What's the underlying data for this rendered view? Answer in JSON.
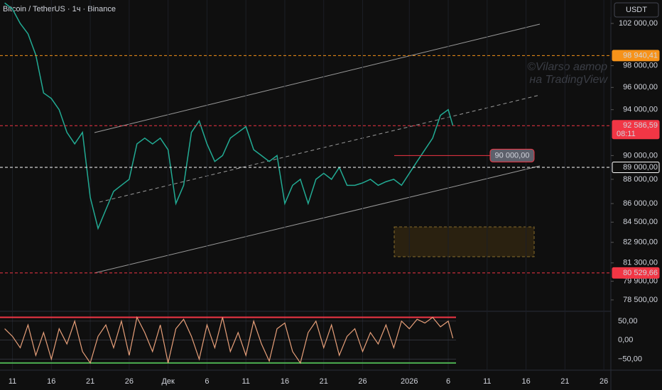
{
  "header": {
    "title": "Bitcoin / TetherUS · 1ч · Binance",
    "currency": "USDT",
    "watermark": [
      "©Vilarso автор",
      "на TradingView"
    ]
  },
  "chart_data": [
    {
      "type": "line",
      "color": "#22ab94",
      "log_scale": true,
      "x": [
        -1,
        0,
        1,
        2,
        3,
        4,
        5,
        6,
        7,
        8,
        9,
        10,
        11,
        12,
        13,
        14,
        15,
        16,
        17,
        18,
        19,
        20,
        21,
        22,
        23,
        24,
        25,
        26,
        27,
        28,
        29,
        30,
        31,
        32,
        33,
        34,
        35,
        36,
        37,
        38,
        39,
        40,
        41,
        42,
        43,
        44,
        45,
        46,
        47,
        48,
        49,
        50,
        51,
        52,
        53,
        54,
        55,
        56,
        56.6
      ],
      "values": [
        104000,
        103400,
        102000,
        101000,
        99000,
        95500,
        95000,
        94000,
        92000,
        91000,
        92000,
        86500,
        84000,
        85500,
        87000,
        87500,
        88000,
        91000,
        91500,
        91000,
        91500,
        90500,
        86000,
        87500,
        92000,
        93000,
        91000,
        89500,
        90000,
        91500,
        92000,
        92500,
        90500,
        90000,
        89500,
        90000,
        86000,
        87500,
        88000,
        86000,
        88000,
        88500,
        88000,
        89000,
        87500,
        87500,
        87700,
        88000,
        87500,
        87800,
        88000,
        87500,
        88500,
        89500,
        90500,
        91500,
        93500,
        94000,
        92586.59
      ],
      "xlim": [
        -1.6,
        76.9
      ],
      "xticks": [
        {
          "value": 0,
          "label": "11"
        },
        {
          "value": 5,
          "label": "16"
        },
        {
          "value": 10,
          "label": "21"
        },
        {
          "value": 15,
          "label": "26"
        },
        {
          "value": 20,
          "label": "Дек"
        },
        {
          "value": 25,
          "label": "6"
        },
        {
          "value": 30,
          "label": "11"
        },
        {
          "value": 35,
          "label": "16"
        },
        {
          "value": 40,
          "label": "21"
        },
        {
          "value": 45,
          "label": "26"
        },
        {
          "value": 51,
          "label": "2026"
        },
        {
          "value": 56,
          "label": "6"
        },
        {
          "value": 61,
          "label": "11"
        },
        {
          "value": 66,
          "label": "16"
        },
        {
          "value": 71,
          "label": "21"
        },
        {
          "value": 76,
          "label": "26"
        }
      ],
      "ylim": [
        77710,
        104290
      ],
      "yticks": [
        {
          "value": 102000,
          "label": "102 000,00"
        },
        {
          "value": 98000,
          "label": "98 000,00"
        },
        {
          "value": 96000,
          "label": "96 000,00"
        },
        {
          "value": 94000,
          "label": "94 000,00"
        },
        {
          "value": 90000,
          "label": "90 000,00"
        },
        {
          "value": 88000,
          "label": "88 000,00"
        },
        {
          "value": 86000,
          "label": "86 000,00"
        },
        {
          "value": 84500,
          "label": "84 500,00"
        },
        {
          "value": 82900,
          "label": "82 900,00"
        },
        {
          "value": 81300,
          "label": "81 300,00"
        },
        {
          "value": 79900,
          "label": "79 900,00"
        },
        {
          "value": 78500,
          "label": "78 500,00"
        }
      ],
      "price_labels": [
        {
          "value": 98940.41,
          "label": "98 940,41",
          "color": "#f7931a"
        },
        {
          "value": 92586.59,
          "label": "92 586,59",
          "sub": "08:11",
          "color": "#f23645"
        },
        {
          "value": 89000,
          "label": "89 000,00",
          "color": "#ffffff"
        },
        {
          "value": 80529.66,
          "label": "80 529,66",
          "color": "#f23645"
        }
      ],
      "annotation": {
        "value": 90000,
        "label": "90 000,00"
      }
    },
    {
      "type": "oscillator",
      "color": "#e8a07a",
      "values": [
        30,
        10,
        -20,
        40,
        -40,
        20,
        -50,
        30,
        -10,
        50,
        -30,
        -60,
        10,
        40,
        -20,
        50,
        -40,
        60,
        20,
        -30,
        40,
        -60,
        30,
        55,
        10,
        -50,
        40,
        -20,
        60,
        -30,
        20,
        -40,
        50,
        -10,
        -55,
        30,
        45,
        -30,
        -60,
        20,
        50,
        -20,
        40,
        -40,
        10,
        30,
        -30,
        20,
        -10,
        40,
        -20,
        50,
        30,
        55,
        45,
        60,
        35,
        50,
        5
      ],
      "ylim": [
        -77,
        74
      ],
      "yticks": [
        {
          "value": 50,
          "label": "50,00"
        },
        {
          "value": 0,
          "label": "0,00"
        },
        {
          "value": -50,
          "label": "−50,00"
        }
      ],
      "levels": [
        {
          "value": 60,
          "color": "#f23645"
        },
        {
          "value": -60,
          "color": "#4caf50"
        }
      ]
    }
  ]
}
